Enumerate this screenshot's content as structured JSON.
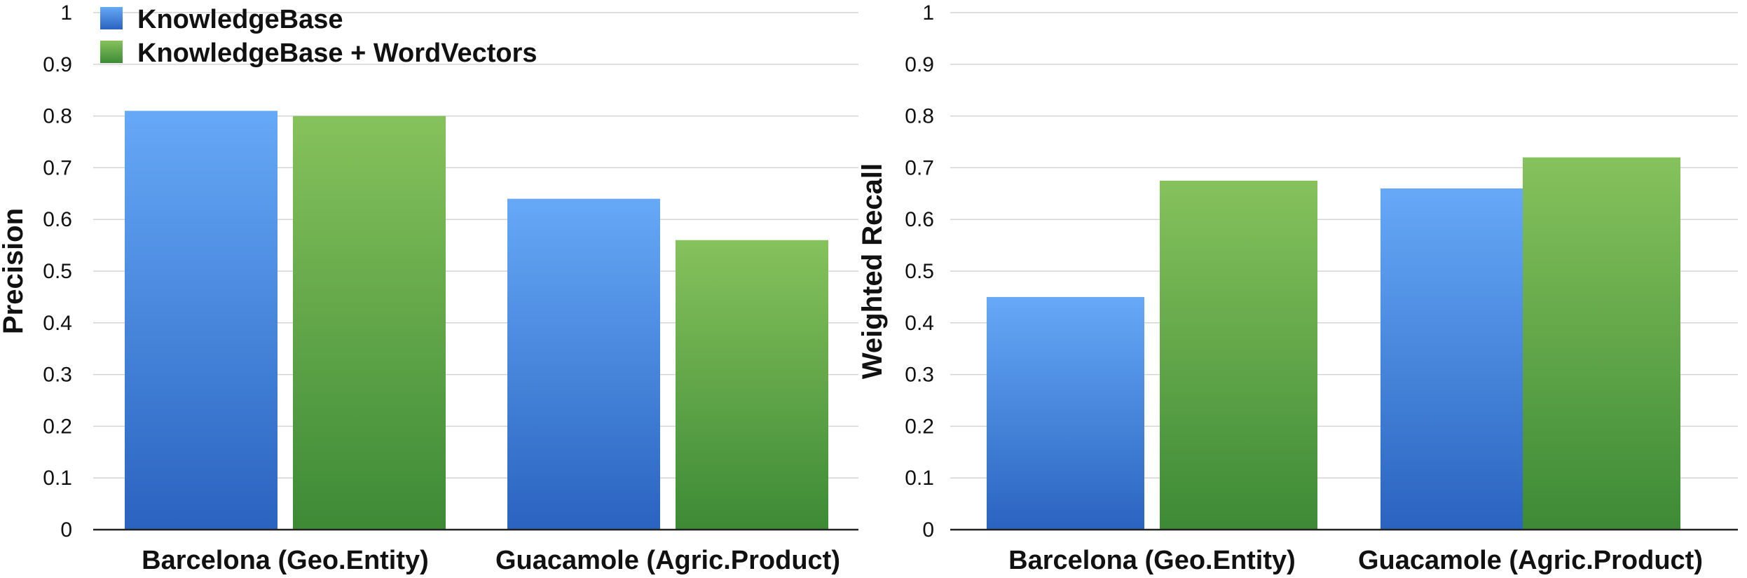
{
  "colors": {
    "knowledgebase_top": "#66a9f7",
    "knowledgebase_bottom": "#2a63c0",
    "wordvectors_top": "#86c25c",
    "wordvectors_bottom": "#3d8a36"
  },
  "chart_data": [
    {
      "type": "bar",
      "title": "",
      "xlabel": "",
      "ylabel": "Precision",
      "ylim": [
        0,
        1
      ],
      "yticks": [
        "0",
        "0.1",
        "0.2",
        "0.3",
        "0.4",
        "0.5",
        "0.6",
        "0.7",
        "0.8",
        "0.9",
        "1"
      ],
      "categories": [
        "Barcelona (Geo.Entity)",
        "Guacamole (Agric.Product)"
      ],
      "series": [
        {
          "name": "KnowledgeBase",
          "values": [
            0.81,
            0.64
          ]
        },
        {
          "name": "KnowledgeBase + WordVectors",
          "values": [
            0.8,
            0.56
          ]
        }
      ],
      "grid": true,
      "legend": "top-left"
    },
    {
      "type": "bar",
      "title": "",
      "xlabel": "",
      "ylabel": "Weighted Recall",
      "ylim": [
        0,
        1
      ],
      "yticks": [
        "0",
        "0.1",
        "0.2",
        "0.3",
        "0.4",
        "0.5",
        "0.6",
        "0.7",
        "0.8",
        "0.9",
        "1"
      ],
      "categories": [
        "Barcelona (Geo.Entity)",
        "Guacamole (Agric.Product)"
      ],
      "series": [
        {
          "name": "KnowledgeBase",
          "values": [
            0.45,
            0.66
          ]
        },
        {
          "name": "KnowledgeBase + WordVectors",
          "values": [
            0.675,
            0.72
          ]
        }
      ],
      "grid": true,
      "legend": "none"
    }
  ]
}
